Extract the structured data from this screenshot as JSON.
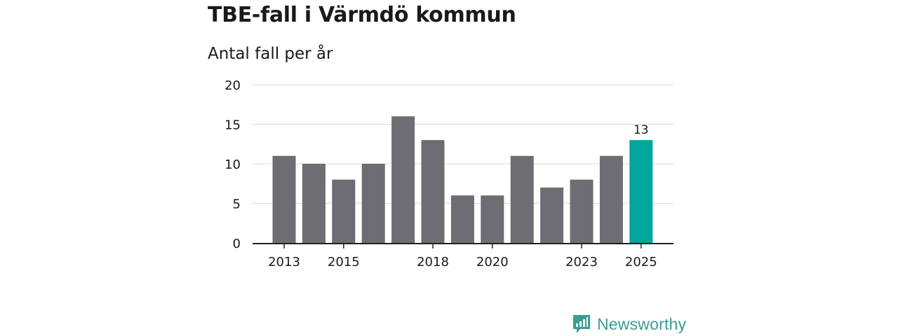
{
  "header": {
    "title": "TBE-fall i Värmdö kommun",
    "subtitle": "Antal fall per år"
  },
  "logo": {
    "text": "Newsworthy",
    "icon": "newsworthy-bar-chart-icon"
  },
  "colors": {
    "bar": "#6e6d73",
    "highlight": "#00a69a",
    "grid": "#d9d9d9",
    "axis": "#222222",
    "text": "#1a1a1a",
    "brand": "#3a9c94"
  },
  "chart_data": {
    "type": "bar",
    "title": "TBE-fall i Värmdö kommun",
    "ylabel": "Antal fall per år",
    "xlabel": "",
    "categories": [
      "2013",
      "2014",
      "2015",
      "2016",
      "2017",
      "2018",
      "2019",
      "2020",
      "2021",
      "2022",
      "2023",
      "2024",
      "2025"
    ],
    "values": [
      11,
      10,
      8,
      10,
      16,
      13,
      6,
      6,
      11,
      7,
      8,
      11,
      13
    ],
    "x_tick_labels": [
      "2013",
      "2015",
      "2018",
      "2020",
      "2023",
      "2025"
    ],
    "y_ticks": [
      0,
      5,
      10,
      15,
      20
    ],
    "ylim": [
      0,
      20
    ],
    "highlight_category": "2025",
    "data_labels": [
      {
        "category": "2025",
        "value": 13
      }
    ],
    "grid": true,
    "legend": "none"
  }
}
